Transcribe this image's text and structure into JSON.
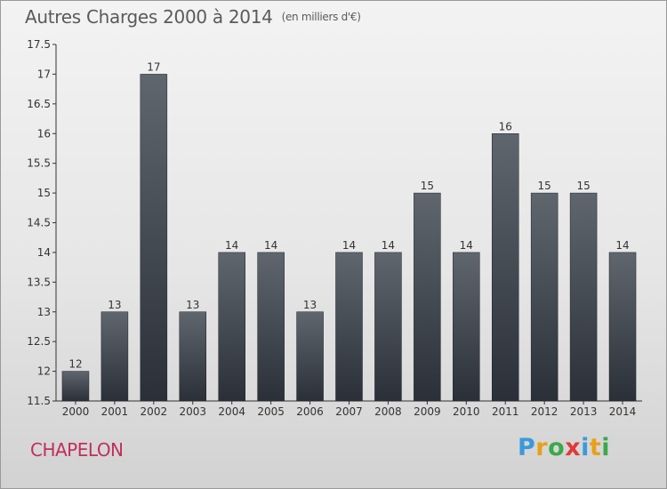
{
  "header": {
    "title": "Autres Charges 2000 à 2014",
    "unit": "(en milliers d'€)"
  },
  "footer": {
    "commune": "CHAPELON",
    "logo": [
      {
        "char": "P",
        "color": "#3a9ad9"
      },
      {
        "char": "r",
        "color": "#e8a019"
      },
      {
        "char": "o",
        "color": "#3aa94a"
      },
      {
        "char": "x",
        "color": "#e03a3a"
      },
      {
        "char": "i",
        "color": "#3a9ad9"
      },
      {
        "char": "t",
        "color": "#e8a019"
      },
      {
        "char": "i",
        "color": "#3aa94a"
      }
    ]
  },
  "chart_data": {
    "type": "bar",
    "title": "Autres Charges 2000 à 2014",
    "categories": [
      "2000",
      "2001",
      "2002",
      "2003",
      "2004",
      "2005",
      "2006",
      "2007",
      "2008",
      "2009",
      "2010",
      "2011",
      "2012",
      "2013",
      "2014"
    ],
    "values": [
      12,
      13,
      17,
      13,
      14,
      14,
      13,
      14,
      14,
      15,
      14,
      16,
      15,
      15,
      14
    ],
    "ylim": [
      11.5,
      17.5
    ],
    "yticks": [
      11.5,
      12,
      12.5,
      13,
      13.5,
      14,
      14.5,
      15,
      15.5,
      16,
      16.5,
      17,
      17.5
    ],
    "grid": false,
    "bar_color_top": "#5f666e",
    "bar_color_bottom": "#2b3038"
  }
}
